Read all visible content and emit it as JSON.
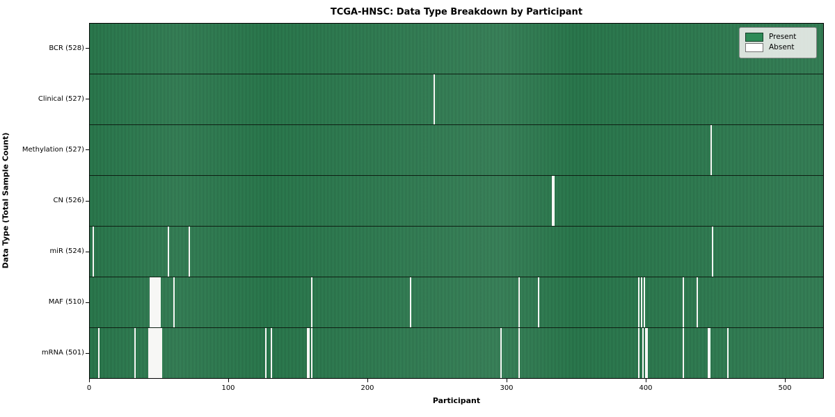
{
  "title": "TCGA-HNSC: Data Type Breakdown by Participant",
  "xlabel": "Participant",
  "ylabel": "Data Type (Total Sample Count)",
  "legend": {
    "present_label": "Present",
    "absent_label": "Absent"
  },
  "colors": {
    "present": "#2e8b57",
    "present_stripe_dark": "#1e5c3a",
    "absent": "#ffffff",
    "plot_border": "#000000",
    "legend_bg": "#e8ece8"
  },
  "chart_data": {
    "type": "heatmap",
    "title": "TCGA-HNSC: Data Type Breakdown by Participant",
    "xlabel": "Participant",
    "ylabel": "Data Type (Total Sample Count)",
    "total_participants": 528,
    "x_ticks": [
      0,
      100,
      200,
      300,
      400,
      500
    ],
    "xlim": [
      0,
      528
    ],
    "legend_position": "upper right",
    "grid": false,
    "cell_states": [
      "Present",
      "Absent"
    ],
    "rows": [
      {
        "label": "BCR (528)",
        "data_type": "BCR",
        "present_count": 528,
        "absent_participants": []
      },
      {
        "label": "Clinical (527)",
        "data_type": "Clinical",
        "present_count": 527,
        "absent_participants": [
          247
        ]
      },
      {
        "label": "Methylation (527)",
        "data_type": "Methylation",
        "present_count": 527,
        "absent_participants": [
          446
        ]
      },
      {
        "label": "CN (526)",
        "data_type": "CN",
        "present_count": 526,
        "absent_participants": [
          332,
          333
        ]
      },
      {
        "label": "miR (524)",
        "data_type": "miR",
        "present_count": 524,
        "absent_participants": [
          2,
          56,
          71,
          447
        ]
      },
      {
        "label": "MAF (510)",
        "data_type": "MAF",
        "present_count": 510,
        "absent_participants": [
          43,
          44,
          45,
          46,
          47,
          48,
          49,
          50,
          60,
          159,
          230,
          308,
          322,
          394,
          396,
          398,
          426,
          436
        ]
      },
      {
        "label": "mRNA (501)",
        "data_type": "mRNA",
        "present_count": 501,
        "absent_participants": [
          6,
          32,
          42,
          43,
          44,
          45,
          46,
          47,
          48,
          49,
          50,
          51,
          126,
          130,
          156,
          157,
          159,
          295,
          308,
          394,
          397,
          399,
          400,
          426,
          444,
          445,
          458
        ]
      }
    ]
  }
}
